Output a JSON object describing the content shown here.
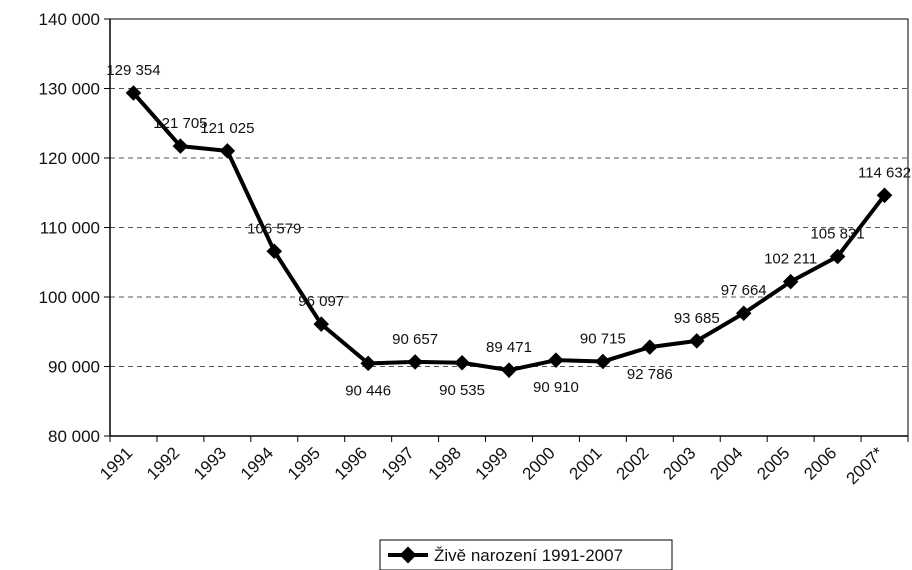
{
  "chart_data": {
    "type": "line",
    "title": "",
    "xlabel": "",
    "ylabel": "",
    "categories": [
      "1991",
      "1992",
      "1993",
      "1994",
      "1995",
      "1996",
      "1997",
      "1998",
      "1999",
      "2000",
      "2001",
      "2002",
      "2003",
      "2004",
      "2005",
      "2006",
      "2007*"
    ],
    "series": [
      {
        "name": "Živě narození 1991-2007",
        "values": [
          129354,
          121705,
          121025,
          106579,
          96097,
          90446,
          90657,
          90535,
          89471,
          90910,
          90715,
          92786,
          93685,
          97664,
          102211,
          105831,
          114632
        ],
        "data_labels": [
          "129 354",
          "121 705",
          "121 025",
          "106 579",
          "96 097",
          "90 446",
          "90 657",
          "90 535",
          "89 471",
          "90 910",
          "90 715",
          "92 786",
          "93 685",
          "97 664",
          "102 211",
          "105 831",
          "114 632"
        ],
        "color": "#000000"
      }
    ],
    "ylim": [
      80000,
      140000
    ],
    "yticks": [
      80000,
      90000,
      100000,
      110000,
      120000,
      130000,
      140000
    ],
    "ytick_labels": [
      "80 000",
      "90 000",
      "100 000",
      "110 000",
      "120 000",
      "130 000",
      "140 000"
    ],
    "grid": "horizontal-dashed",
    "legend_position": "bottom-center",
    "label_positions": [
      "above",
      "above",
      "above",
      "above",
      "above",
      "below",
      "above",
      "below",
      "above",
      "below",
      "above",
      "below",
      "above",
      "above",
      "above",
      "above",
      "above"
    ]
  }
}
